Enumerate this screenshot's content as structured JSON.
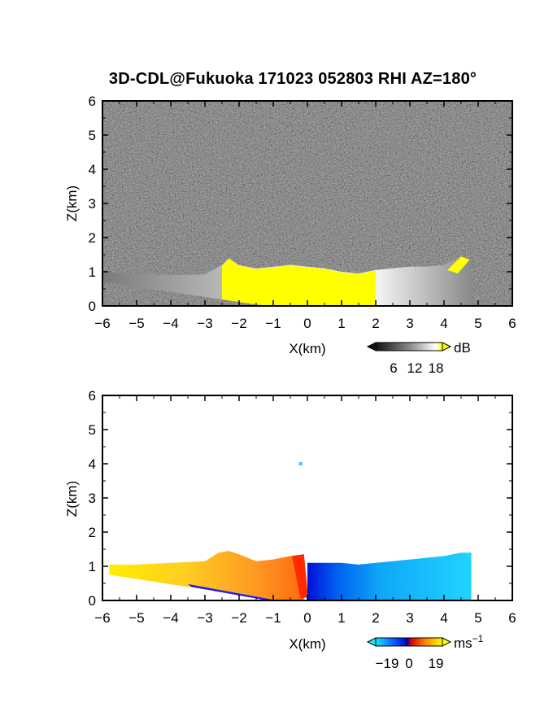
{
  "chart_data": [
    {
      "type": "heatmap",
      "panel": "top",
      "title": "3D-CDL@Fukuoka 171023 052803 RHI AZ=180°",
      "xlabel": "X(km)",
      "ylabel": "Z(km)",
      "xlim": [
        -6,
        6
      ],
      "ylim": [
        0,
        6
      ],
      "xticks": [
        -6,
        -5,
        -4,
        -3,
        -2,
        -1,
        0,
        1,
        2,
        3,
        4,
        5,
        6
      ],
      "yticks": [
        0,
        1,
        2,
        3,
        4,
        5,
        6
      ],
      "tick_labels_x": [
        "−6",
        "−5",
        "−4",
        "−3",
        "−2",
        "−1",
        "0",
        "1",
        "2",
        "3",
        "4",
        "5",
        "6"
      ],
      "tick_labels_y": [
        "0",
        "1",
        "2",
        "3",
        "4",
        "5",
        "6"
      ],
      "background": "noise (dark gray speckle)",
      "colorbar": {
        "unit": "dB",
        "ticks": [
          6,
          12,
          18
        ],
        "tick_labels": [
          "6",
          "12",
          "18"
        ],
        "colors": [
          "#222222",
          "#888888",
          "#ffffff",
          "#ffff00"
        ]
      },
      "echo_top_km": [
        [
          -6,
          1.0
        ],
        [
          -5,
          0.95
        ],
        [
          -4,
          0.9
        ],
        [
          -3,
          0.92
        ],
        [
          -2.5,
          1.2
        ],
        [
          -2.3,
          1.4
        ],
        [
          -2,
          1.2
        ],
        [
          -1.5,
          1.1
        ],
        [
          -1,
          1.15
        ],
        [
          -0.5,
          1.2
        ],
        [
          0,
          1.15
        ],
        [
          0.5,
          1.1
        ],
        [
          1,
          1.0
        ],
        [
          1.5,
          0.95
        ],
        [
          2,
          1.05
        ],
        [
          2.5,
          1.1
        ],
        [
          3,
          1.15
        ],
        [
          3.5,
          1.15
        ],
        [
          4,
          1.2
        ],
        [
          4.5,
          1.45
        ],
        [
          4.8,
          1.3
        ]
      ],
      "yellow_region_x_km": [
        -2.5,
        2.2
      ]
    },
    {
      "type": "heatmap",
      "panel": "bottom",
      "xlabel": "X(km)",
      "ylabel": "Z(km)",
      "xlim": [
        -6,
        6
      ],
      "ylim": [
        0,
        6
      ],
      "xticks": [
        -6,
        -5,
        -4,
        -3,
        -2,
        -1,
        0,
        1,
        2,
        3,
        4,
        5,
        6
      ],
      "yticks": [
        0,
        1,
        2,
        3,
        4,
        5,
        6
      ],
      "tick_labels_x": [
        "−6",
        "−5",
        "−4",
        "−3",
        "−2",
        "−1",
        "0",
        "1",
        "2",
        "3",
        "4",
        "5",
        "6"
      ],
      "tick_labels_y": [
        "0",
        "1",
        "2",
        "3",
        "4",
        "5",
        "6"
      ],
      "colorbar": {
        "unit": "ms",
        "unit_sup": "−1",
        "ticks": [
          -19,
          0,
          19
        ],
        "tick_labels": [
          "−19",
          "0",
          "19"
        ],
        "colors": [
          "#00e0ff",
          "#0000ff",
          "#ff0000",
          "#ff8800",
          "#ffff00"
        ]
      },
      "echo_top_km": [
        [
          -5.8,
          1.05
        ],
        [
          -5,
          1.05
        ],
        [
          -4,
          1.1
        ],
        [
          -3,
          1.15
        ],
        [
          -2.6,
          1.4
        ],
        [
          -2.3,
          1.45
        ],
        [
          -2,
          1.35
        ],
        [
          -1.5,
          1.15
        ],
        [
          -1,
          1.2
        ],
        [
          -0.5,
          1.3
        ],
        [
          -0.1,
          1.35
        ],
        [
          0,
          1.1
        ],
        [
          0.5,
          1.1
        ],
        [
          1,
          1.1
        ],
        [
          1.5,
          1.05
        ],
        [
          2,
          1.1
        ],
        [
          2.5,
          1.15
        ],
        [
          3,
          1.2
        ],
        [
          3.5,
          1.25
        ],
        [
          4,
          1.3
        ],
        [
          4.5,
          1.4
        ],
        [
          4.8,
          1.4
        ]
      ],
      "isolated_point": [
        -0.2,
        4.0
      ]
    }
  ]
}
